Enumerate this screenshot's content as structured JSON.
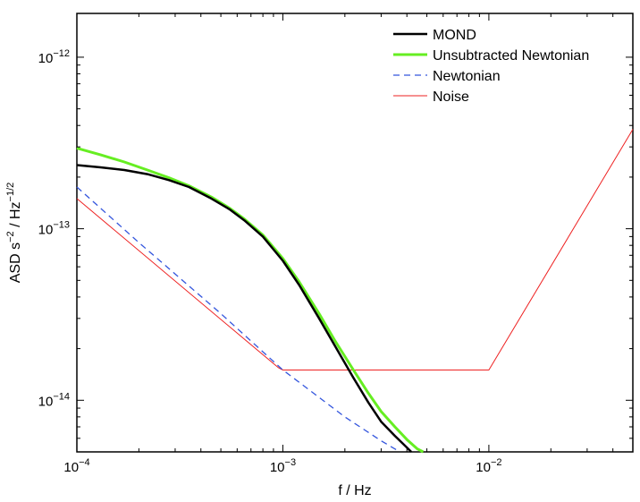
{
  "chart_data": {
    "type": "line",
    "title": "",
    "xlabel": "f / Hz",
    "ylabel": "ASD s⁻² / Hz⁻¹ᐟ²",
    "ylabel_parts": {
      "a": "ASD s",
      "a_sup": "−2",
      "b": " / Hz",
      "b_sup": "−1/2"
    },
    "x_scale": "log",
    "y_scale": "log",
    "xlim": [
      0.0001,
      0.05
    ],
    "ylim": [
      5e-15,
      1.8e-12
    ],
    "grid": false,
    "legend_position": "top-right",
    "x_ticks": [
      {
        "value": 0.0001,
        "base": "10",
        "exp": "−4"
      },
      {
        "value": 0.001,
        "base": "10",
        "exp": "−3"
      },
      {
        "value": 0.01,
        "base": "10",
        "exp": "−2"
      }
    ],
    "y_ticks": [
      {
        "value": 1e-14,
        "base": "10",
        "exp": "−14"
      },
      {
        "value": 1e-13,
        "base": "10",
        "exp": "−13"
      },
      {
        "value": 1e-12,
        "base": "10",
        "exp": "−12"
      }
    ],
    "series": [
      {
        "name": "MOND",
        "color": "#000000",
        "dash": "solid",
        "x": [
          0.0001,
          0.00013,
          0.00017,
          0.00022,
          0.00028,
          0.00035,
          0.00045,
          0.00055,
          0.00065,
          0.0008,
          0.001,
          0.0012,
          0.0015,
          0.0018,
          0.0022,
          0.0026,
          0.003,
          0.0035,
          0.004,
          0.0042
        ],
        "y": [
          2.35e-13,
          2.28e-13,
          2.2e-13,
          2.08e-13,
          1.92e-13,
          1.75e-13,
          1.5e-13,
          1.3e-13,
          1.12e-13,
          9e-14,
          6.5e-14,
          4.7e-14,
          3e-14,
          2.05e-14,
          1.35e-14,
          9.7e-15,
          7.5e-15,
          6.2e-15,
          5.3e-15,
          5e-15
        ]
      },
      {
        "name": "Unsubtracted Newtonian",
        "color": "#66ee22",
        "dash": "solid",
        "x": [
          0.0001,
          0.00013,
          0.00017,
          0.00022,
          0.00028,
          0.00035,
          0.00045,
          0.00055,
          0.00065,
          0.0008,
          0.001,
          0.0012,
          0.0015,
          0.0018,
          0.0022,
          0.0026,
          0.003,
          0.0035,
          0.004,
          0.0045,
          0.0048
        ],
        "y": [
          2.95e-13,
          2.7e-13,
          2.45e-13,
          2.2e-13,
          1.98e-13,
          1.78e-13,
          1.53e-13,
          1.32e-13,
          1.14e-13,
          9.2e-14,
          6.7e-14,
          4.9e-14,
          3.2e-14,
          2.2e-14,
          1.5e-14,
          1.1e-14,
          8.6e-15,
          7e-15,
          5.9e-15,
          5.2e-15,
          5e-15
        ]
      },
      {
        "name": "Newtonian",
        "color": "#3355dd",
        "dash": "dashed",
        "x": [
          0.0001,
          0.0002,
          0.0005,
          0.001,
          0.002,
          0.003,
          0.0037
        ],
        "y": [
          1.75e-13,
          8.3e-14,
          3.2e-14,
          1.5e-14,
          8e-15,
          5.8e-15,
          5e-15
        ]
      },
      {
        "name": "Noise",
        "color": "#ee2222",
        "dash": "solid",
        "x": [
          0.0001,
          0.00095,
          0.001,
          0.01,
          0.05
        ],
        "y": [
          1.5e-13,
          1.55e-14,
          1.5e-14,
          1.5e-14,
          3.8e-13
        ]
      }
    ]
  }
}
